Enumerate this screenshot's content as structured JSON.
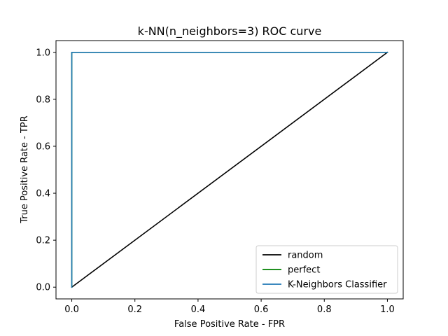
{
  "chart_data": {
    "type": "line",
    "title": "k-NN(n_neighbors=3) ROC curve",
    "xlabel": "False Positive Rate - FPR",
    "ylabel": "True Positive Rate - TPR",
    "xlim": [
      -0.05,
      1.05
    ],
    "ylim": [
      -0.05,
      1.05
    ],
    "xticks": [
      0.0,
      0.2,
      0.4,
      0.6,
      0.8,
      1.0
    ],
    "yticks": [
      0.0,
      0.2,
      0.4,
      0.6,
      0.8,
      1.0
    ],
    "xtick_labels": [
      "0.0",
      "0.2",
      "0.4",
      "0.6",
      "0.8",
      "1.0"
    ],
    "ytick_labels": [
      "0.0",
      "0.2",
      "0.4",
      "0.6",
      "0.8",
      "1.0"
    ],
    "grid": false,
    "legend_position": "bottom-right",
    "series": [
      {
        "name": "random",
        "color": "#000000",
        "x": [
          0.0,
          1.0
        ],
        "y": [
          0.0,
          1.0
        ]
      },
      {
        "name": "perfect",
        "color": "#008000",
        "x": [
          0.0,
          0.0,
          1.0
        ],
        "y": [
          0.0,
          1.0,
          1.0
        ]
      },
      {
        "name": "K-Neighbors Classifier",
        "color": "#1f77b4",
        "x": [
          0.0,
          0.0,
          1.0
        ],
        "y": [
          0.0,
          1.0,
          1.0
        ]
      }
    ]
  }
}
